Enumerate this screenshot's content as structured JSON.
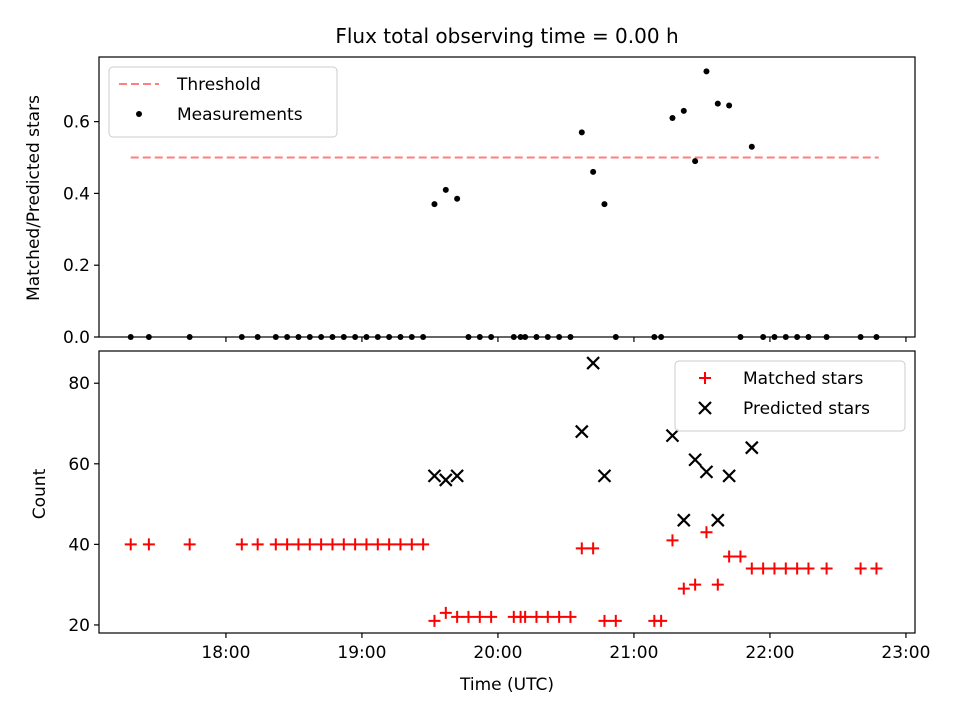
{
  "chart_data": [
    {
      "type": "scatter",
      "title": "Flux total observing time = 0.00 h",
      "xlabel": "",
      "ylabel": "Matched/Predicted stars",
      "xlim": [
        "17:04",
        "23:04"
      ],
      "ylim": [
        0,
        0.78
      ],
      "xticks": [
        "18:00",
        "19:00",
        "20:00",
        "21:00",
        "22:00",
        "23:00"
      ],
      "yticks": [
        "0.0",
        "0.2",
        "0.4",
        "0.6"
      ],
      "legend_position": "top-left",
      "threshold": {
        "name": "Threshold",
        "value": 0.5,
        "x_start": "17:18",
        "x_end": "22:48",
        "color": "#ff7f7f",
        "style": "dashed"
      },
      "series": [
        {
          "name": "Measurements",
          "marker": "dot",
          "color": "#000000",
          "points": [
            [
              "17:18",
              0
            ],
            [
              "17:26",
              0
            ],
            [
              "17:44",
              0
            ],
            [
              "18:07",
              0
            ],
            [
              "18:14",
              0
            ],
            [
              "18:22",
              0
            ],
            [
              "18:27",
              0
            ],
            [
              "18:32",
              0
            ],
            [
              "18:37",
              0
            ],
            [
              "18:42",
              0
            ],
            [
              "18:47",
              0
            ],
            [
              "18:52",
              0
            ],
            [
              "18:57",
              0
            ],
            [
              "19:02",
              0
            ],
            [
              "19:07",
              0
            ],
            [
              "19:12",
              0
            ],
            [
              "19:17",
              0
            ],
            [
              "19:22",
              0
            ],
            [
              "19:27",
              0
            ],
            [
              "19:32",
              0.37
            ],
            [
              "19:37",
              0.41
            ],
            [
              "19:42",
              0.385
            ],
            [
              "19:47",
              0
            ],
            [
              "19:52",
              0
            ],
            [
              "19:57",
              0
            ],
            [
              "20:07",
              0
            ],
            [
              "20:10",
              0
            ],
            [
              "20:12",
              0
            ],
            [
              "20:17",
              0
            ],
            [
              "20:22",
              0
            ],
            [
              "20:27",
              0
            ],
            [
              "20:32",
              0
            ],
            [
              "20:37",
              0.57
            ],
            [
              "20:42",
              0.46
            ],
            [
              "20:47",
              0.37
            ],
            [
              "20:52",
              0
            ],
            [
              "21:09",
              0
            ],
            [
              "21:12",
              0
            ],
            [
              "21:17",
              0.61
            ],
            [
              "21:22",
              0.63
            ],
            [
              "21:27",
              0.49
            ],
            [
              "21:32",
              0.74
            ],
            [
              "21:37",
              0.65
            ],
            [
              "21:42",
              0.645
            ],
            [
              "21:47",
              0
            ],
            [
              "21:52",
              0.53
            ],
            [
              "21:57",
              0
            ],
            [
              "22:02",
              0
            ],
            [
              "22:07",
              0
            ],
            [
              "22:12",
              0
            ],
            [
              "22:17",
              0
            ],
            [
              "22:25",
              0
            ],
            [
              "22:40",
              0
            ],
            [
              "22:47",
              0
            ]
          ]
        }
      ]
    },
    {
      "type": "scatter",
      "title": "",
      "xlabel": "Time (UTC)",
      "ylabel": "Count",
      "xlim": [
        "17:04",
        "23:04"
      ],
      "ylim": [
        18,
        88
      ],
      "xticks": [
        "18:00",
        "19:00",
        "20:00",
        "21:00",
        "22:00",
        "23:00"
      ],
      "yticks": [
        "20",
        "40",
        "60",
        "80"
      ],
      "legend_position": "top-right",
      "series": [
        {
          "name": "Matched stars",
          "marker": "plus",
          "color": "#ff0000",
          "points": [
            [
              "17:18",
              40
            ],
            [
              "17:26",
              40
            ],
            [
              "17:44",
              40
            ],
            [
              "18:07",
              40
            ],
            [
              "18:14",
              40
            ],
            [
              "18:22",
              40
            ],
            [
              "18:27",
              40
            ],
            [
              "18:32",
              40
            ],
            [
              "18:37",
              40
            ],
            [
              "18:42",
              40
            ],
            [
              "18:47",
              40
            ],
            [
              "18:52",
              40
            ],
            [
              "18:57",
              40
            ],
            [
              "19:02",
              40
            ],
            [
              "19:07",
              40
            ],
            [
              "19:12",
              40
            ],
            [
              "19:17",
              40
            ],
            [
              "19:22",
              40
            ],
            [
              "19:27",
              40
            ],
            [
              "19:32",
              21
            ],
            [
              "19:37",
              23
            ],
            [
              "19:42",
              22
            ],
            [
              "19:47",
              22
            ],
            [
              "19:52",
              22
            ],
            [
              "19:57",
              22
            ],
            [
              "20:07",
              22
            ],
            [
              "20:10",
              22
            ],
            [
              "20:12",
              22
            ],
            [
              "20:17",
              22
            ],
            [
              "20:22",
              22
            ],
            [
              "20:27",
              22
            ],
            [
              "20:32",
              22
            ],
            [
              "20:37",
              39
            ],
            [
              "20:42",
              39
            ],
            [
              "20:47",
              21
            ],
            [
              "20:52",
              21
            ],
            [
              "21:09",
              21
            ],
            [
              "21:12",
              21
            ],
            [
              "21:17",
              41
            ],
            [
              "21:22",
              29
            ],
            [
              "21:27",
              30
            ],
            [
              "21:32",
              43
            ],
            [
              "21:37",
              30
            ],
            [
              "21:42",
              37
            ],
            [
              "21:47",
              37
            ],
            [
              "21:52",
              34
            ],
            [
              "21:57",
              34
            ],
            [
              "22:02",
              34
            ],
            [
              "22:07",
              34
            ],
            [
              "22:12",
              34
            ],
            [
              "22:17",
              34
            ],
            [
              "22:25",
              34
            ],
            [
              "22:40",
              34
            ],
            [
              "22:47",
              34
            ]
          ]
        },
        {
          "name": "Predicted stars",
          "marker": "x",
          "color": "#000000",
          "points": [
            [
              "19:32",
              57
            ],
            [
              "19:37",
              56
            ],
            [
              "19:42",
              57
            ],
            [
              "20:37",
              68
            ],
            [
              "20:42",
              85
            ],
            [
              "20:47",
              57
            ],
            [
              "21:17",
              67
            ],
            [
              "21:22",
              46
            ],
            [
              "21:27",
              61
            ],
            [
              "21:32",
              58
            ],
            [
              "21:37",
              46
            ],
            [
              "21:42",
              57
            ],
            [
              "21:52",
              64
            ]
          ]
        }
      ]
    }
  ]
}
